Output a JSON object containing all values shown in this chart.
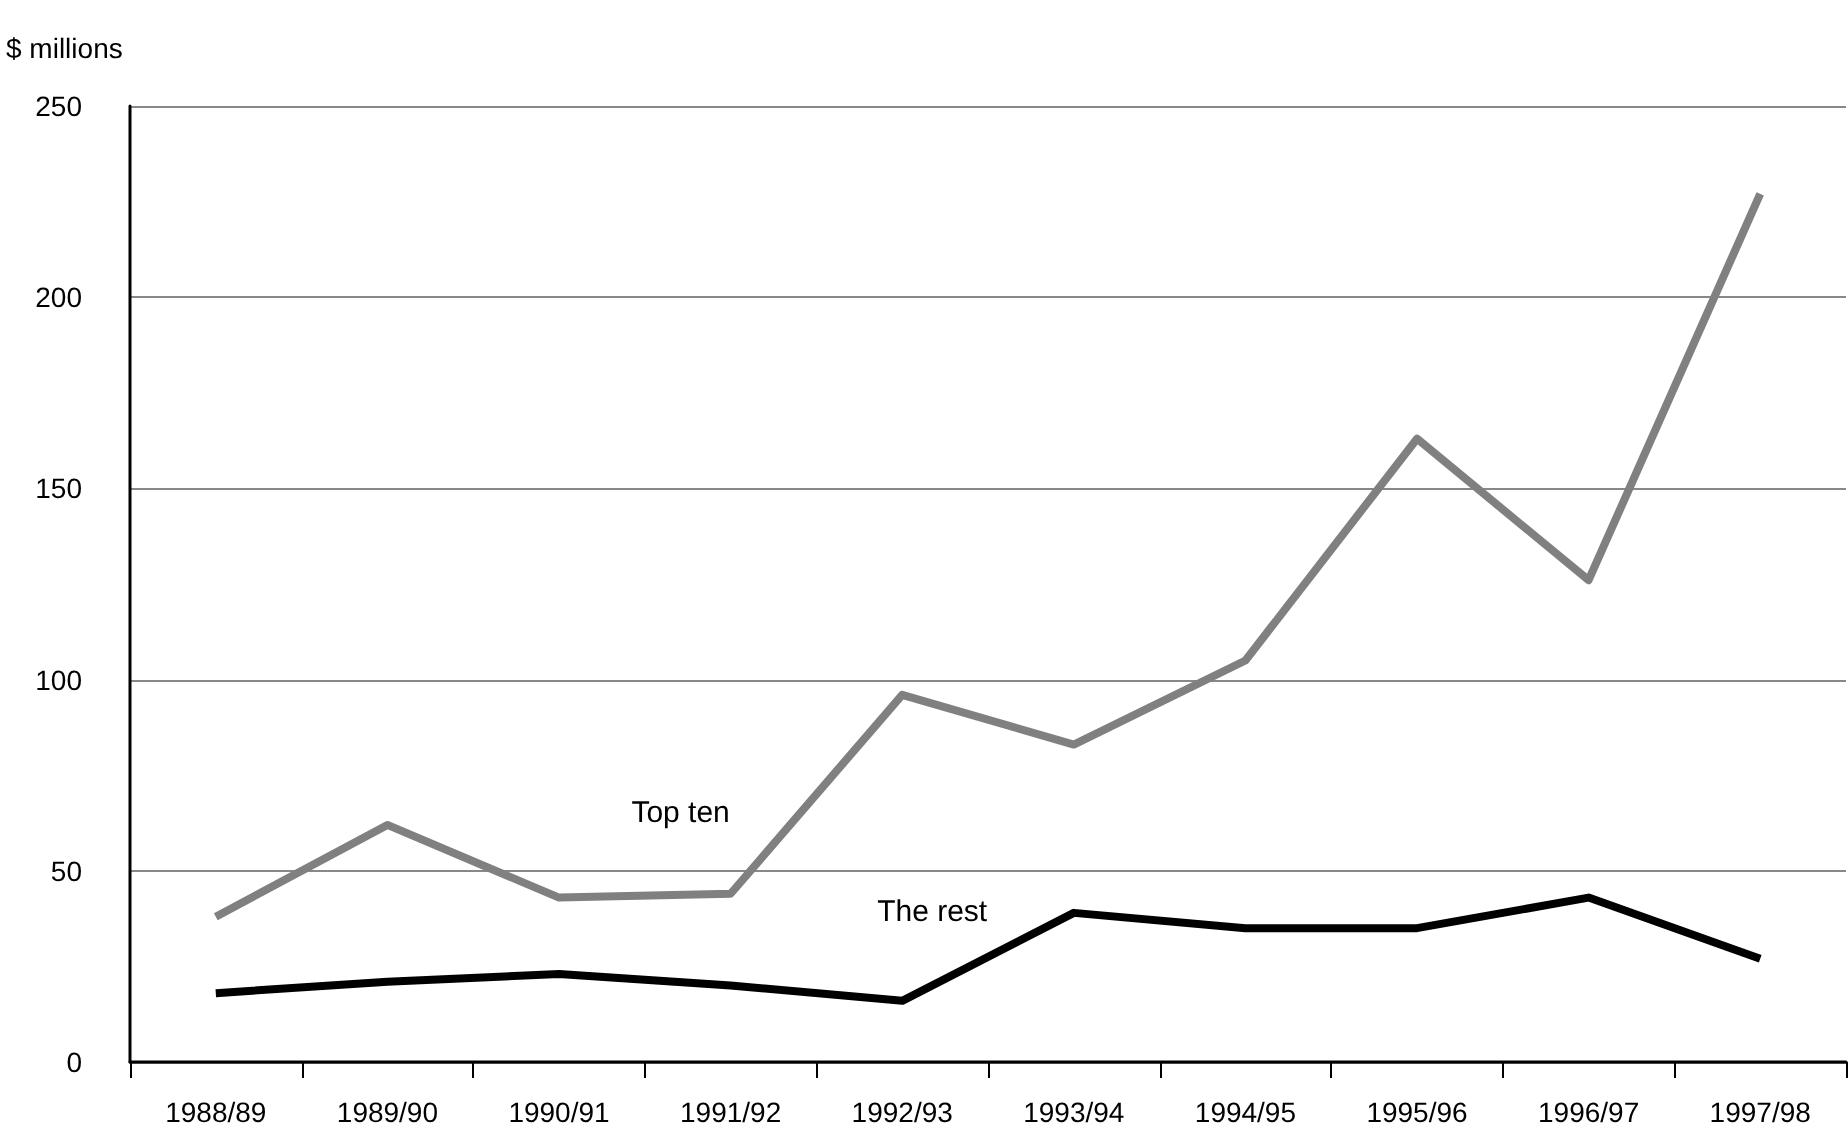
{
  "chart_data": {
    "type": "line",
    "ylabel": "$ millions",
    "categories": [
      "1988/89",
      "1989/90",
      "1990/91",
      "1991/92",
      "1992/93",
      "1993/94",
      "1994/95",
      "1995/96",
      "1996/97",
      "1997/98"
    ],
    "series": [
      {
        "name": "Top ten",
        "color": "#808080",
        "values": [
          38,
          62,
          43,
          44,
          96,
          83,
          105,
          163,
          126,
          227
        ]
      },
      {
        "name": "The rest",
        "color": "#000000",
        "values": [
          18,
          21,
          23,
          20,
          16,
          39,
          35,
          35,
          43,
          27
        ]
      }
    ],
    "ylim": [
      0,
      250
    ],
    "yticks": [
      0,
      50,
      100,
      150,
      200,
      250
    ],
    "grid": "y",
    "legend": false,
    "marker": "none",
    "line_style": "solid"
  }
}
